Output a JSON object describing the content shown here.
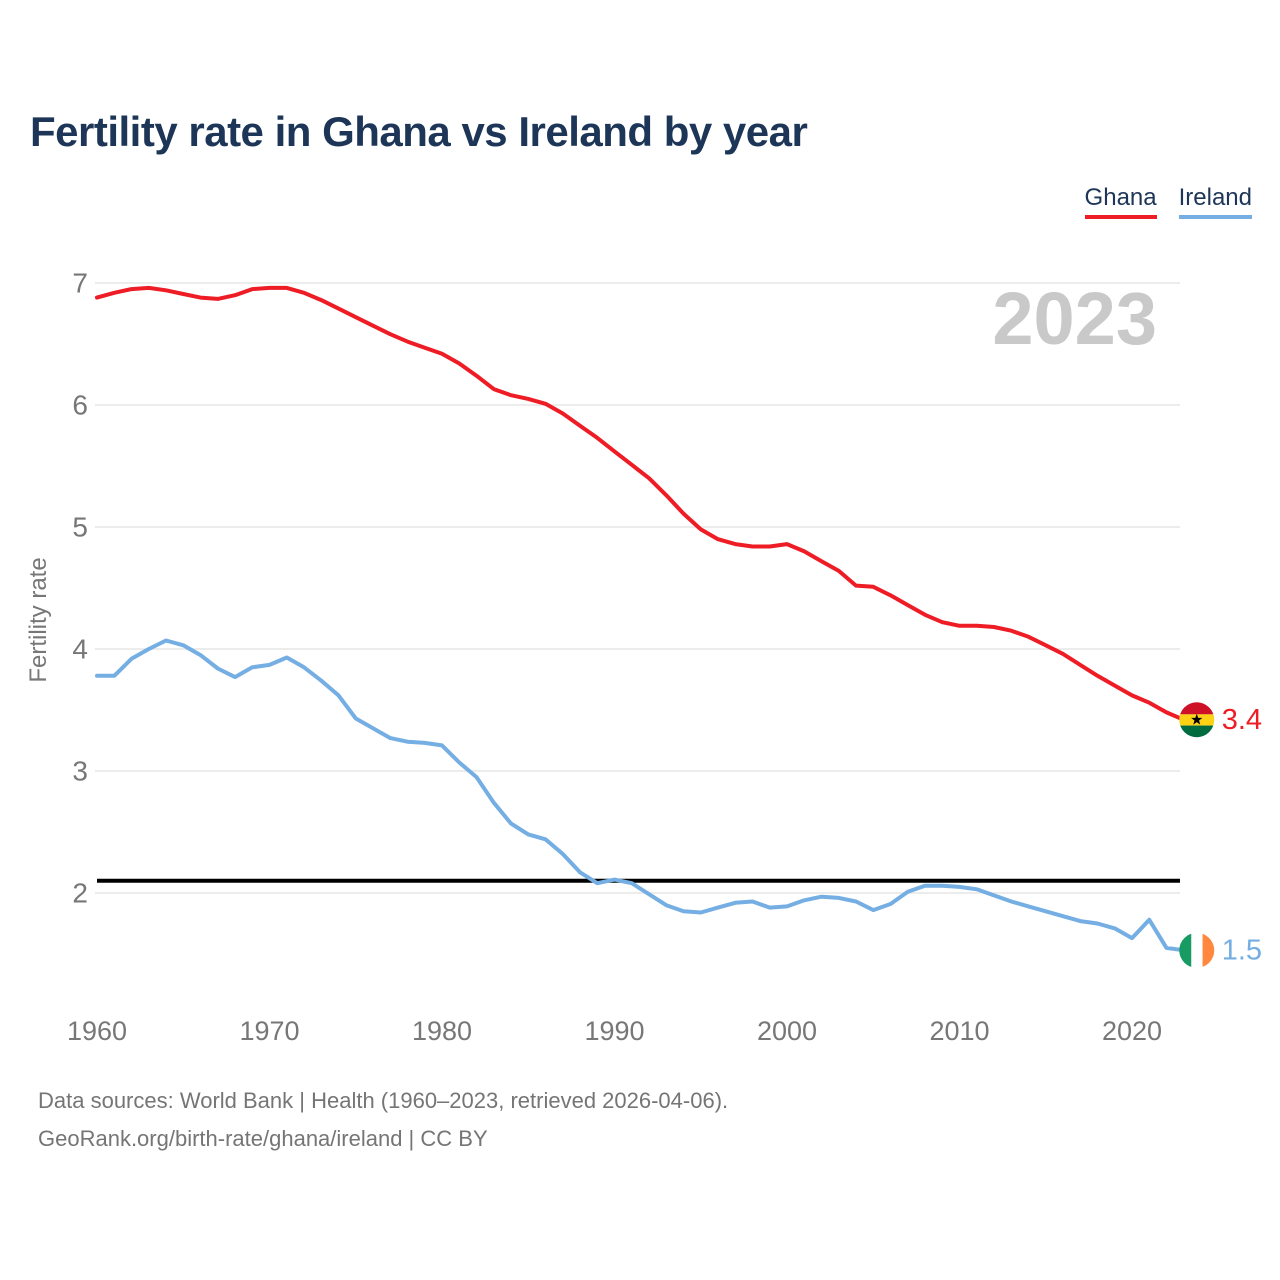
{
  "header": {
    "title": "Fertility rate in Ghana vs Ireland by year"
  },
  "legend": {
    "items": [
      {
        "label": "Ghana",
        "color": "#ee1c25"
      },
      {
        "label": "Ireland",
        "color": "#74aee3"
      }
    ]
  },
  "chart_data": {
    "type": "line",
    "title": "Fertility rate in Ghana vs Ireland by year",
    "xlabel": "",
    "ylabel": "Fertility rate",
    "ylim": [
      1.4,
      7.1
    ],
    "xlim": [
      1960,
      2023
    ],
    "y_ticks": [
      2,
      3,
      4,
      5,
      6,
      7
    ],
    "x_ticks": [
      1960,
      1970,
      1980,
      1990,
      2000,
      2010,
      2020
    ],
    "grid": "horizontal",
    "legend_position": "top-right",
    "watermark": "2023",
    "reference_line": {
      "value": 2.1,
      "color": "#000000"
    },
    "x": [
      1960,
      1961,
      1962,
      1963,
      1964,
      1965,
      1966,
      1967,
      1968,
      1969,
      1970,
      1971,
      1972,
      1973,
      1974,
      1975,
      1976,
      1977,
      1978,
      1979,
      1980,
      1981,
      1982,
      1983,
      1984,
      1985,
      1986,
      1987,
      1988,
      1989,
      1990,
      1991,
      1992,
      1993,
      1994,
      1995,
      1996,
      1997,
      1998,
      1999,
      2000,
      2001,
      2002,
      2003,
      2004,
      2005,
      2006,
      2007,
      2008,
      2009,
      2010,
      2011,
      2012,
      2013,
      2014,
      2015,
      2016,
      2017,
      2018,
      2019,
      2020,
      2021,
      2022,
      2023
    ],
    "series": [
      {
        "name": "Ghana",
        "color": "#ee1c25",
        "end_label": "3.4",
        "flag": "ghana",
        "values": [
          6.88,
          6.92,
          6.95,
          6.96,
          6.94,
          6.91,
          6.88,
          6.87,
          6.9,
          6.95,
          6.96,
          6.96,
          6.92,
          6.86,
          6.79,
          6.72,
          6.65,
          6.58,
          6.52,
          6.47,
          6.42,
          6.34,
          6.24,
          6.13,
          6.08,
          6.05,
          6.01,
          5.93,
          5.83,
          5.73,
          5.62,
          5.51,
          5.4,
          5.26,
          5.11,
          4.98,
          4.9,
          4.86,
          4.84,
          4.84,
          4.86,
          4.8,
          4.72,
          4.64,
          4.52,
          4.51,
          4.44,
          4.36,
          4.28,
          4.22,
          4.19,
          4.19,
          4.18,
          4.15,
          4.1,
          4.03,
          3.96,
          3.87,
          3.78,
          3.7,
          3.62,
          3.56,
          3.48,
          3.42
        ]
      },
      {
        "name": "Ireland",
        "color": "#74aee3",
        "end_label": "1.5",
        "flag": "ireland",
        "values": [
          3.78,
          3.78,
          3.92,
          4.0,
          4.07,
          4.03,
          3.95,
          3.84,
          3.77,
          3.85,
          3.87,
          3.93,
          3.85,
          3.74,
          3.62,
          3.43,
          3.35,
          3.27,
          3.24,
          3.23,
          3.21,
          3.07,
          2.95,
          2.74,
          2.57,
          2.48,
          2.44,
          2.32,
          2.17,
          2.08,
          2.11,
          2.08,
          1.99,
          1.9,
          1.85,
          1.84,
          1.88,
          1.92,
          1.93,
          1.88,
          1.89,
          1.94,
          1.97,
          1.96,
          1.93,
          1.86,
          1.91,
          2.01,
          2.06,
          2.06,
          2.05,
          2.03,
          1.98,
          1.93,
          1.89,
          1.85,
          1.81,
          1.77,
          1.75,
          1.71,
          1.63,
          1.78,
          1.55,
          1.53
        ]
      }
    ],
    "flag_colors": {
      "ghana": {
        "red": "#ce1126",
        "gold": "#fcd116",
        "green": "#006b3f",
        "star": "#000000"
      },
      "ireland": {
        "green": "#169b62",
        "white": "#ffffff",
        "orange": "#ff883e"
      }
    }
  },
  "colors": {
    "title": "#1d3557",
    "axis_text": "#777777",
    "gridline": "#ececec",
    "watermark": "#c9c9c9",
    "footer_text": "#757575"
  },
  "footer": {
    "line1": "Data sources: World Bank | Health (1960–2023, retrieved 2026-04-06).",
    "line2": "GeoRank.org/birth-rate/ghana/ireland | CC BY"
  }
}
